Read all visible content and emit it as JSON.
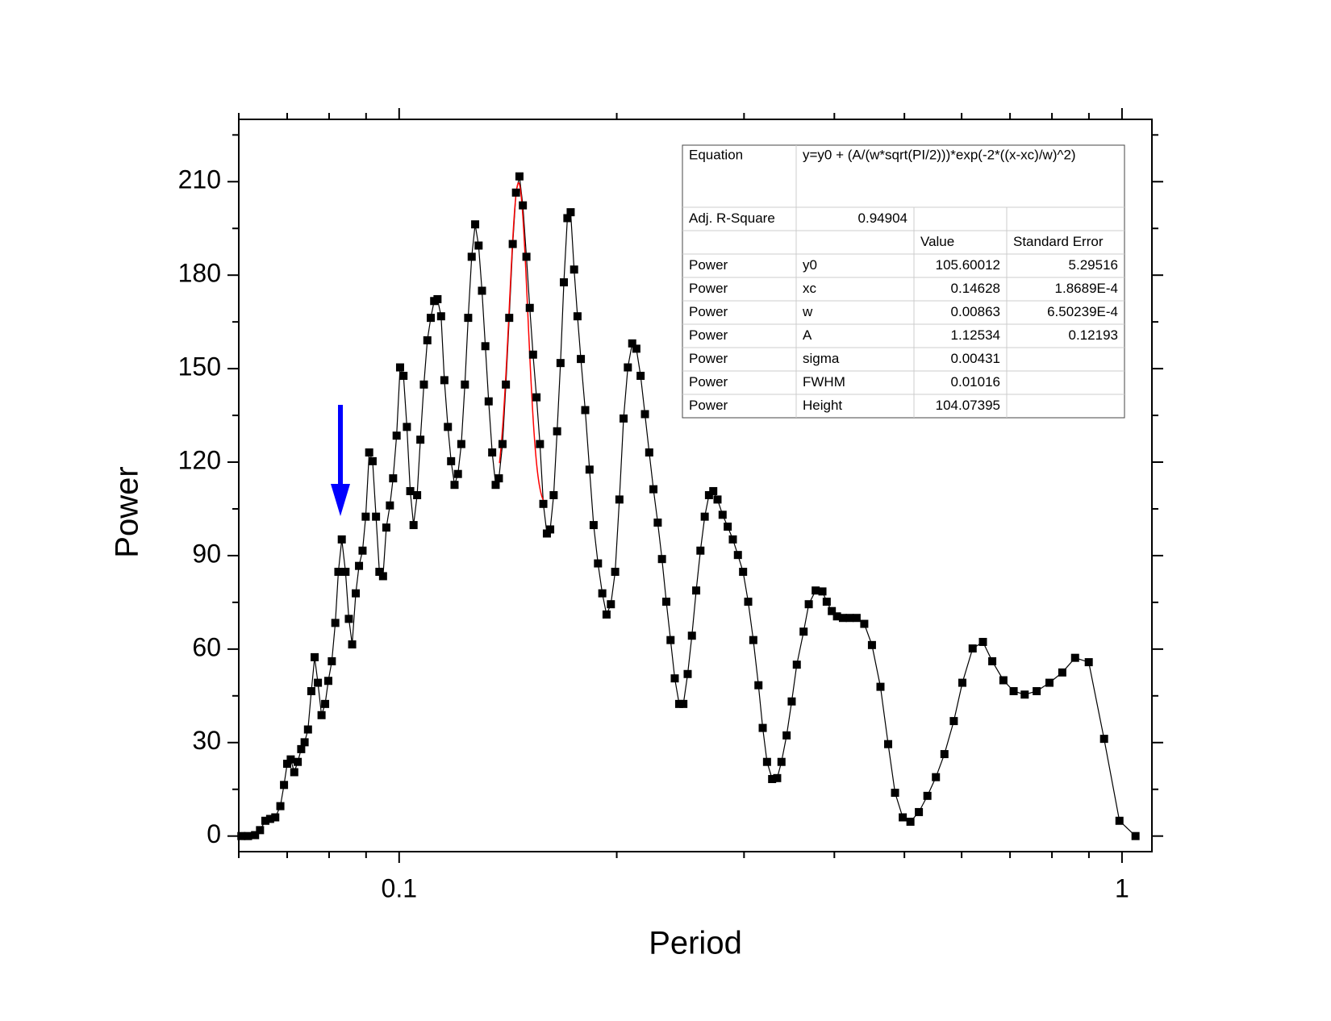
{
  "chart_data": {
    "type": "line",
    "x_label": "Period",
    "y_label": "Power",
    "xscale": "log",
    "xlim": [
      0.06,
      1.1
    ],
    "xticks": [
      0.1,
      1
    ],
    "xminorticks": [
      0.06,
      0.07,
      0.08,
      0.09,
      0.2,
      0.3,
      0.4,
      0.5,
      0.6,
      0.7,
      0.8,
      0.9
    ],
    "ylim": [
      -5,
      230
    ],
    "yticks": [
      0,
      30,
      60,
      90,
      120,
      150,
      180,
      210
    ],
    "yminorticks": [
      15,
      45,
      75,
      105,
      135,
      165,
      195,
      225
    ],
    "grid": false,
    "color": "#000000",
    "marker": "square",
    "x": [
      0.0605,
      0.0618,
      0.0632,
      0.0642,
      0.0653,
      0.0663,
      0.0674,
      0.0685,
      0.0693,
      0.07,
      0.0708,
      0.0716,
      0.0724,
      0.0732,
      0.074,
      0.0748,
      0.0756,
      0.0764,
      0.0772,
      0.0781,
      0.079,
      0.0798,
      0.0807,
      0.0816,
      0.0824,
      0.0833,
      0.0843,
      0.0852,
      0.0861,
      0.0871,
      0.088,
      0.089,
      0.0899,
      0.0909,
      0.0919,
      0.0929,
      0.0939,
      0.095,
      0.096,
      0.0971,
      0.0981,
      0.0992,
      0.1003,
      0.1014,
      0.1025,
      0.1036,
      0.1047,
      0.1059,
      0.107,
      0.1082,
      0.1094,
      0.1106,
      0.1118,
      0.113,
      0.1143,
      0.1155,
      0.1168,
      0.118,
      0.1193,
      0.1206,
      0.1219,
      0.1233,
      0.1246,
      0.126,
      0.1274,
      0.1288,
      0.1302,
      0.1316,
      0.133,
      0.1345,
      0.136,
      0.1374,
      0.139,
      0.1405,
      0.142,
      0.1436,
      0.1451,
      0.1467,
      0.1483,
      0.15,
      0.1516,
      0.1532,
      0.1549,
      0.1566,
      0.1583,
      0.1601,
      0.1618,
      0.1636,
      0.1654,
      0.1672,
      0.169,
      0.1709,
      0.1727,
      0.1746,
      0.1765,
      0.1784,
      0.1809,
      0.1834,
      0.1858,
      0.1884,
      0.191,
      0.1936,
      0.1963,
      0.199,
      0.2017,
      0.2044,
      0.2072,
      0.2101,
      0.2129,
      0.2158,
      0.2188,
      0.2218,
      0.2248,
      0.2279,
      0.231,
      0.2342,
      0.2374,
      0.2406,
      0.244,
      0.2473,
      0.2507,
      0.2541,
      0.2576,
      0.2611,
      0.2647,
      0.2683,
      0.272,
      0.2757,
      0.2802,
      0.2848,
      0.2895,
      0.2942,
      0.2991,
      0.304,
      0.309,
      0.3141,
      0.3184,
      0.3228,
      0.3281,
      0.3334,
      0.338,
      0.3436,
      0.3492,
      0.3549,
      0.3627,
      0.3687,
      0.3769,
      0.3851,
      0.3904,
      0.3968,
      0.4034,
      0.4111,
      0.4201,
      0.4294,
      0.44,
      0.4509,
      0.4633,
      0.4748,
      0.4853,
      0.4974,
      0.5097,
      0.5236,
      0.538,
      0.5528,
      0.568,
      0.5852,
      0.6014,
      0.6214,
      0.6421,
      0.6615,
      0.6854,
      0.7081,
      0.7335,
      0.762,
      0.7937,
      0.8268,
      0.8612,
      0.8995,
      0.9445,
      0.9919,
      1.044
    ],
    "values": [
      0,
      0,
      0.3,
      1.9,
      4.9,
      5.5,
      6.0,
      9.6,
      16.4,
      23.2,
      24.6,
      20.5,
      23.8,
      27.9,
      30.1,
      34.2,
      46.5,
      57.4,
      49.2,
      38.8,
      42.4,
      49.8,
      56.1,
      68.4,
      84.8,
      95.2,
      84.8,
      69.7,
      61.5,
      77.9,
      86.7,
      91.6,
      102.5,
      123.1,
      120.3,
      102.5,
      84.8,
      83.4,
      99.0,
      106.1,
      114.8,
      128.5,
      150.4,
      147.7,
      131.3,
      110.7,
      99.8,
      109.4,
      127.2,
      144.9,
      159.1,
      166.3,
      171.7,
      172.3,
      166.8,
      146.3,
      131.3,
      120.3,
      112.7,
      116.2,
      125.8,
      144.9,
      166.3,
      185.9,
      196.3,
      189.5,
      175.0,
      157.2,
      139.5,
      123.1,
      112.7,
      114.8,
      125.8,
      144.9,
      166.3,
      190.0,
      206.5,
      211.7,
      202.4,
      185.9,
      169.5,
      154.5,
      140.8,
      125.8,
      106.6,
      97.1,
      98.4,
      109.4,
      129.9,
      151.8,
      177.7,
      198.3,
      200.2,
      181.8,
      166.8,
      153.1,
      136.7,
      117.6,
      99.8,
      87.5,
      77.9,
      71.1,
      74.4,
      84.8,
      108.0,
      134.0,
      150.4,
      158.1,
      156.4,
      147.7,
      135.4,
      123.1,
      111.3,
      100.6,
      88.9,
      75.2,
      62.9,
      50.6,
      42.4,
      42.4,
      52.0,
      64.3,
      78.8,
      91.6,
      102.5,
      109.4,
      110.7,
      108.0,
      103.1,
      99.3,
      95.2,
      90.2,
      84.8,
      75.2,
      62.9,
      48.4,
      34.7,
      23.8,
      18.3,
      18.6,
      23.8,
      32.3,
      43.2,
      55.0,
      65.6,
      74.4,
      78.8,
      78.5,
      75.2,
      72.2,
      70.5,
      70.0,
      70.0,
      70.0,
      68.1,
      61.3,
      47.9,
      29.5,
      13.9,
      6.0,
      4.6,
      7.7,
      12.9,
      18.9,
      26.3,
      36.9,
      49.2,
      60.2,
      62.3,
      56.1,
      50.0,
      46.5,
      45.4,
      46.5,
      49.2,
      52.5,
      57.2,
      55.8,
      31.2,
      4.9,
      0
    ],
    "fit": {
      "color": "#ff0000",
      "equation_label": "Equation",
      "equation": "y=y0 + (A/(w*sqrt(PI/2)))*exp(-2*((x-xc)/w)^2)",
      "r2_label": "Adj. R-Square",
      "r2": 0.94904,
      "columns": [
        "Value",
        "Standard Error"
      ],
      "rows": [
        [
          "Power",
          "y0",
          105.60012,
          "5.29516"
        ],
        [
          "Power",
          "xc",
          0.14628,
          "1.8689E-4"
        ],
        [
          "Power",
          "w",
          0.00863,
          "6.50239E-4"
        ],
        [
          "Power",
          "A",
          1.12534,
          "0.12193"
        ],
        [
          "Power",
          "sigma",
          0.00431
        ],
        [
          "Power",
          "FWHM",
          0.01016
        ],
        [
          "Power",
          "Height",
          104.07395
        ]
      ]
    }
  }
}
